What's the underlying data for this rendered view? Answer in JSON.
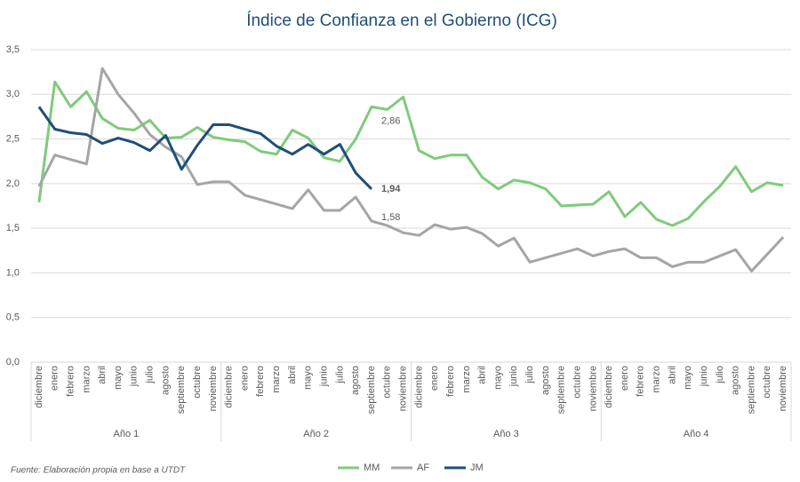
{
  "chart_data": {
    "type": "line",
    "title": "Índice de Confianza en el Gobierno (ICG)",
    "note": "Fuente: Elaboración propia en base a UTDT",
    "categories": [
      "diciembre",
      "enero",
      "febrero",
      "marzo",
      "abril",
      "mayo",
      "junio",
      "julio",
      "agosto",
      "septiembre",
      "octubre",
      "noviembre",
      "diciembre",
      "enero",
      "febrero",
      "marzo",
      "abril",
      "mayo",
      "junio",
      "julio",
      "agosto",
      "septiembre",
      "octubre",
      "noviembre",
      "diciembre",
      "enero",
      "febrero",
      "marzo",
      "abril",
      "mayo",
      "junio",
      "julio",
      "agosto",
      "septiembre",
      "octubre",
      "noviembre",
      "diciembre",
      "enero",
      "febrero",
      "marzo",
      "abril",
      "mayo",
      "junio",
      "julio",
      "agosto",
      "septiembre",
      "octubre",
      "noviembre"
    ],
    "category_groups": [
      "Año 1",
      "Año 2",
      "Año 3",
      "Año 4"
    ],
    "series": [
      {
        "name": "MM",
        "color": "#7fcb7b",
        "values": [
          1.79,
          3.14,
          2.86,
          3.03,
          2.73,
          2.62,
          2.6,
          2.71,
          2.51,
          2.52,
          2.63,
          2.52,
          2.49,
          2.47,
          2.36,
          2.33,
          2.6,
          2.51,
          2.29,
          2.25,
          2.5,
          2.86,
          2.83,
          2.97,
          2.37,
          2.28,
          2.32,
          2.32,
          2.07,
          1.94,
          2.04,
          2.01,
          1.94,
          1.75,
          1.76,
          1.77,
          1.91,
          1.63,
          1.79,
          1.6,
          1.53,
          1.61,
          1.8,
          1.97,
          2.19,
          1.91,
          2.01,
          1.98
        ],
        "value_labels": [
          null,
          null,
          null,
          null,
          null,
          null,
          null,
          null,
          null,
          null,
          null,
          null,
          null,
          null,
          null,
          null,
          null,
          null,
          null,
          null,
          null,
          "2,86",
          null,
          null,
          null,
          null,
          null,
          null,
          null,
          null,
          null,
          null,
          null,
          null,
          null,
          null,
          null,
          null,
          null,
          null,
          null,
          null,
          null,
          null,
          null,
          null,
          null,
          null
        ]
      },
      {
        "name": "AF",
        "color": "#a5a5a5",
        "values": [
          1.97,
          2.32,
          2.27,
          2.22,
          3.29,
          3.0,
          2.79,
          2.55,
          2.41,
          2.3,
          1.99,
          2.02,
          2.02,
          1.87,
          1.82,
          1.77,
          1.72,
          1.93,
          1.7,
          1.7,
          1.85,
          1.58,
          1.53,
          1.45,
          1.42,
          1.54,
          1.49,
          1.51,
          1.44,
          1.3,
          1.39,
          1.12,
          1.17,
          1.22,
          1.27,
          1.19,
          1.24,
          1.27,
          1.17,
          1.17,
          1.07,
          1.12,
          1.12,
          1.19,
          1.26,
          1.02,
          1.21,
          1.4
        ],
        "value_labels": [
          null,
          null,
          null,
          null,
          null,
          null,
          null,
          null,
          null,
          null,
          null,
          null,
          null,
          null,
          null,
          null,
          null,
          null,
          null,
          null,
          null,
          "1,58",
          null,
          null,
          null,
          null,
          null,
          null,
          null,
          null,
          null,
          null,
          null,
          null,
          null,
          null,
          null,
          null,
          null,
          null,
          null,
          null,
          null,
          null,
          null,
          null,
          null,
          null
        ]
      },
      {
        "name": "JM",
        "color": "#1f4e79",
        "values": [
          2.86,
          2.61,
          2.57,
          2.55,
          2.45,
          2.51,
          2.46,
          2.37,
          2.54,
          2.16,
          2.43,
          2.66,
          2.66,
          2.61,
          2.56,
          2.42,
          2.33,
          2.44,
          2.33,
          2.44,
          2.12,
          1.94,
          null,
          null,
          null,
          null,
          null,
          null,
          null,
          null,
          null,
          null,
          null,
          null,
          null,
          null,
          null,
          null,
          null,
          null,
          null,
          null,
          null,
          null,
          null,
          null,
          null,
          null
        ],
        "value_labels": [
          null,
          null,
          null,
          null,
          null,
          null,
          null,
          null,
          null,
          null,
          null,
          null,
          null,
          null,
          null,
          null,
          null,
          null,
          null,
          null,
          null,
          "1,94",
          null,
          null,
          null,
          null,
          null,
          null,
          null,
          null,
          null,
          null,
          null,
          null,
          null,
          null,
          null,
          null,
          null,
          null,
          null,
          null,
          null,
          null,
          null,
          null,
          null,
          null
        ]
      }
    ],
    "ylim": [
      0,
      3.5
    ],
    "yticks": [
      {
        "value": 0,
        "label": "0,0"
      },
      {
        "value": 0.5,
        "label": "0,5"
      },
      {
        "value": 1,
        "label": "1,0"
      },
      {
        "value": 1.5,
        "label": "1,5"
      },
      {
        "value": 2,
        "label": "2,0"
      },
      {
        "value": 2.5,
        "label": "2,5"
      },
      {
        "value": 3,
        "label": "3,0"
      },
      {
        "value": 3.5,
        "label": "3,5"
      }
    ],
    "grid": true,
    "legend": "bottom"
  }
}
